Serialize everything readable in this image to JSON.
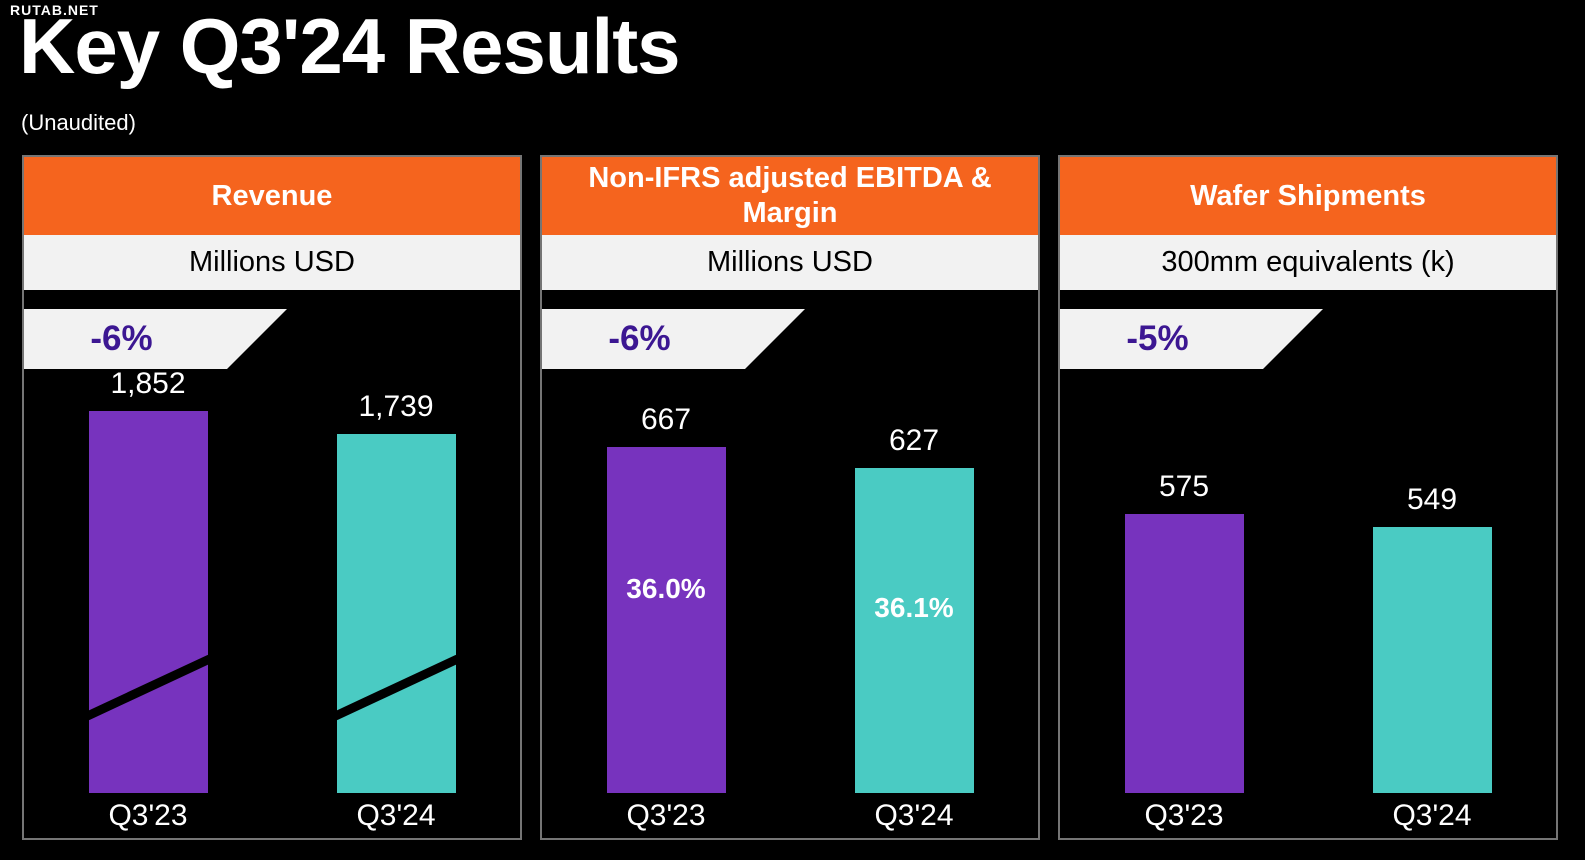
{
  "watermark": "RUTAB.NET",
  "page": {
    "title": "Key Q3'24 Results",
    "subtitle": "(Unaudited)"
  },
  "colors": {
    "background": "#000000",
    "header_orange": "#F5641E",
    "light_bar": "#F2F2F2",
    "bar_q323_purple": "#7733BE",
    "bar_q324_teal": "#4ACBC3",
    "badge_text_purple": "#3C1792",
    "panel_border_gray": "#757575",
    "text_white": "#FFFFFF"
  },
  "chart_data": [
    {
      "type": "bar",
      "title": "Revenue",
      "unit": "Millions USD",
      "change": "-6%",
      "categories": [
        "Q3'23",
        "Q3'24"
      ],
      "values": [
        1852,
        1739
      ],
      "values_display": [
        "1,852",
        "1,739"
      ],
      "axis_break": true,
      "legend_position": "none",
      "grid": false
    },
    {
      "type": "bar",
      "title": "Non-IFRS adjusted EBITDA & Margin",
      "unit": "Millions USD",
      "change": "-6%",
      "categories": [
        "Q3'23",
        "Q3'24"
      ],
      "values": [
        667,
        627
      ],
      "values_display": [
        "667",
        "627"
      ],
      "margin_labels": [
        "36.0%",
        "36.1%"
      ],
      "axis_break": false,
      "legend_position": "none",
      "grid": false
    },
    {
      "type": "bar",
      "title": "Wafer Shipments",
      "unit": "300mm equivalents (k)",
      "change": "-5%",
      "categories": [
        "Q3'23",
        "Q3'24"
      ],
      "values": [
        575,
        549
      ],
      "values_display": [
        "575",
        "549"
      ],
      "axis_break": false,
      "legend_position": "none",
      "grid": false
    }
  ]
}
